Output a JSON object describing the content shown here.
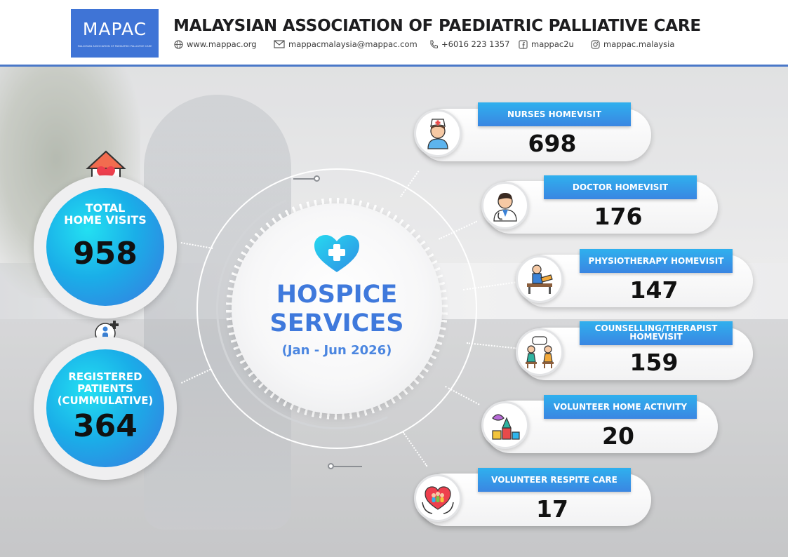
{
  "header": {
    "logo_text": "MAPAC",
    "logo_subtext": "MALAYSIAN ASSOCIATION OF PAEDIATRIC PALLIATIVE CARE",
    "org_name": "MALAYSIAN ASSOCIATION OF PAEDIATRIC PALLIATIVE CARE",
    "website": "www.mappac.org",
    "email": "mappacmalaysia@mappac.com",
    "phone": "+6016 223 1357",
    "facebook": "mappac2u",
    "instagram": "mappac.malaysia"
  },
  "hub": {
    "title_line1": "HOSPICE",
    "title_line2": "SERVICES",
    "period": "(Jan - Jun 2026)",
    "icon": "heart-plus-icon"
  },
  "left_stats": [
    {
      "label_line1": "TOTAL",
      "label_line2": "HOME VISITS",
      "label_line3": "",
      "value": "958",
      "icon": "home-heart-icon"
    },
    {
      "label_line1": "REGISTERED",
      "label_line2": "PATIENTS",
      "label_line3": "(CUMMULATIVE)",
      "value": "364",
      "icon": "hands-patient-icon"
    }
  ],
  "services": [
    {
      "label": "NURSES HOMEVISIT",
      "value": "698",
      "icon": "nurse-icon"
    },
    {
      "label": "DOCTOR HOMEVISIT",
      "value": "176",
      "icon": "doctor-icon"
    },
    {
      "label": "PHYSIOTHERAPY HOMEVISIT",
      "value": "147",
      "icon": "physiotherapy-icon"
    },
    {
      "label_line1": "COUNSELLING/THERAPIST",
      "label_line2": "HOMEVISIT",
      "value": "159",
      "icon": "counselling-icon"
    },
    {
      "label": "VOLUNTEER HOME ACTIVITY",
      "value": "20",
      "icon": "toys-activity-icon"
    },
    {
      "label": "VOLUNTEER RESPITE CARE",
      "value": "17",
      "icon": "respite-care-icon"
    }
  ],
  "colors": {
    "accent_blue": "#3f79dc",
    "cyan": "#23e0f2",
    "header_line": "#4a78c8"
  }
}
